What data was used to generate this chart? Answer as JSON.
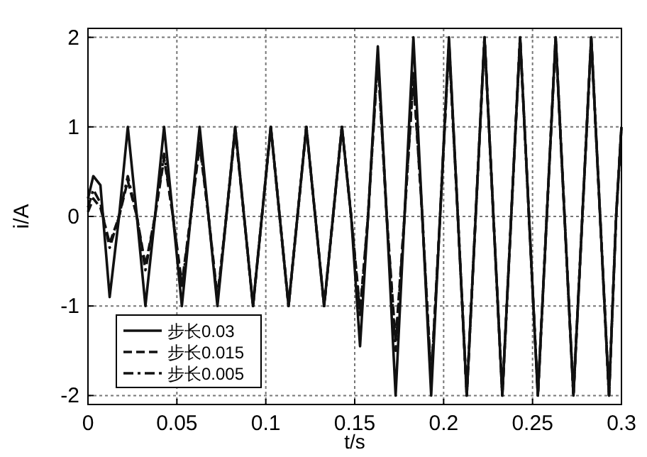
{
  "chart_data": {
    "type": "line",
    "xlabel": "t/s",
    "ylabel": "i/A",
    "xlim": [
      0,
      0.3
    ],
    "ylim": [
      -2.1,
      2.1
    ],
    "xticks": [
      0,
      0.05,
      0.1,
      0.15,
      0.2,
      0.25,
      0.3
    ],
    "yticks": [
      -2,
      -1,
      0,
      1,
      2
    ],
    "grid": true,
    "legend": "bottom left",
    "marker": "none",
    "x": [
      0,
      0.003,
      0.007,
      0.0122,
      0.0175,
      0.0224,
      0.0275,
      0.0323,
      0.0377,
      0.0428,
      0.0478,
      0.0528,
      0.0578,
      0.0628,
      0.0678,
      0.0728,
      0.0778,
      0.0828,
      0.0878,
      0.0928,
      0.0978,
      0.1028,
      0.1078,
      0.1128,
      0.1178,
      0.1228,
      0.1278,
      0.1328,
      0.1378,
      0.1428,
      0.148,
      0.153,
      0.1575,
      0.163,
      0.168,
      0.173,
      0.178,
      0.183,
      0.188,
      0.193,
      0.198,
      0.203,
      0.208,
      0.213,
      0.218,
      0.223,
      0.228,
      0.233,
      0.238,
      0.243,
      0.248,
      0.253,
      0.258,
      0.263,
      0.268,
      0.273,
      0.278,
      0.283,
      0.288,
      0.293,
      0.297,
      0.3
    ],
    "series": [
      {
        "name": "步长0.03",
        "color": "#111111",
        "line_style": "solid",
        "values": [
          0.2,
          0.45,
          0.35,
          -0.9,
          0,
          1,
          0,
          -1,
          0,
          1,
          0,
          -1,
          0,
          1,
          0,
          -1,
          0,
          1,
          0,
          -1,
          0,
          1,
          0,
          -1,
          0,
          1,
          0,
          -1,
          0,
          1,
          0,
          -1.45,
          0,
          1.9,
          0,
          -2,
          0,
          2,
          0,
          -2,
          0,
          2,
          0,
          -2,
          0,
          2,
          0,
          -2,
          0,
          2,
          0,
          -2,
          0,
          2,
          0,
          -2,
          0,
          2,
          0,
          -2,
          0,
          1
        ]
      },
      {
        "name": "步长0.015",
        "color": "#111111",
        "line_style": "dashed",
        "values": [
          0.05,
          0.2,
          0.1,
          -0.3,
          0,
          0.4,
          0,
          -0.55,
          0,
          0.65,
          0,
          -0.75,
          0,
          0.8,
          0,
          -0.9,
          0,
          0.95,
          0,
          -1,
          0,
          1,
          0,
          -1,
          0,
          1,
          0,
          -1,
          0,
          1,
          0,
          -1.05,
          0,
          1.75,
          0,
          -1.4,
          0,
          1.55,
          0,
          -1.8,
          0,
          1.9,
          0,
          -2,
          0,
          2,
          0,
          -2,
          0,
          2,
          0,
          -2,
          0,
          2,
          0,
          -2,
          0,
          2,
          0,
          -2,
          0,
          1
        ]
      },
      {
        "name": "步长0.005",
        "color": "#111111",
        "line_style": "dashdot",
        "values": [
          0.1,
          0.3,
          0.15,
          -0.35,
          0,
          0.45,
          0,
          -0.6,
          0,
          0.7,
          0,
          -0.8,
          0,
          0.85,
          0,
          -0.95,
          0,
          1,
          0,
          -1,
          0,
          1,
          0,
          -1,
          0,
          1,
          0,
          -1,
          0,
          1,
          0,
          -1.1,
          0,
          1.8,
          0,
          -1.5,
          0,
          1.6,
          0,
          -1.85,
          0,
          1.95,
          0,
          -2,
          0,
          2,
          0,
          -2,
          0,
          2,
          0,
          -2,
          0,
          2,
          0,
          -2,
          0,
          2,
          0,
          -2,
          0,
          1
        ]
      }
    ]
  }
}
